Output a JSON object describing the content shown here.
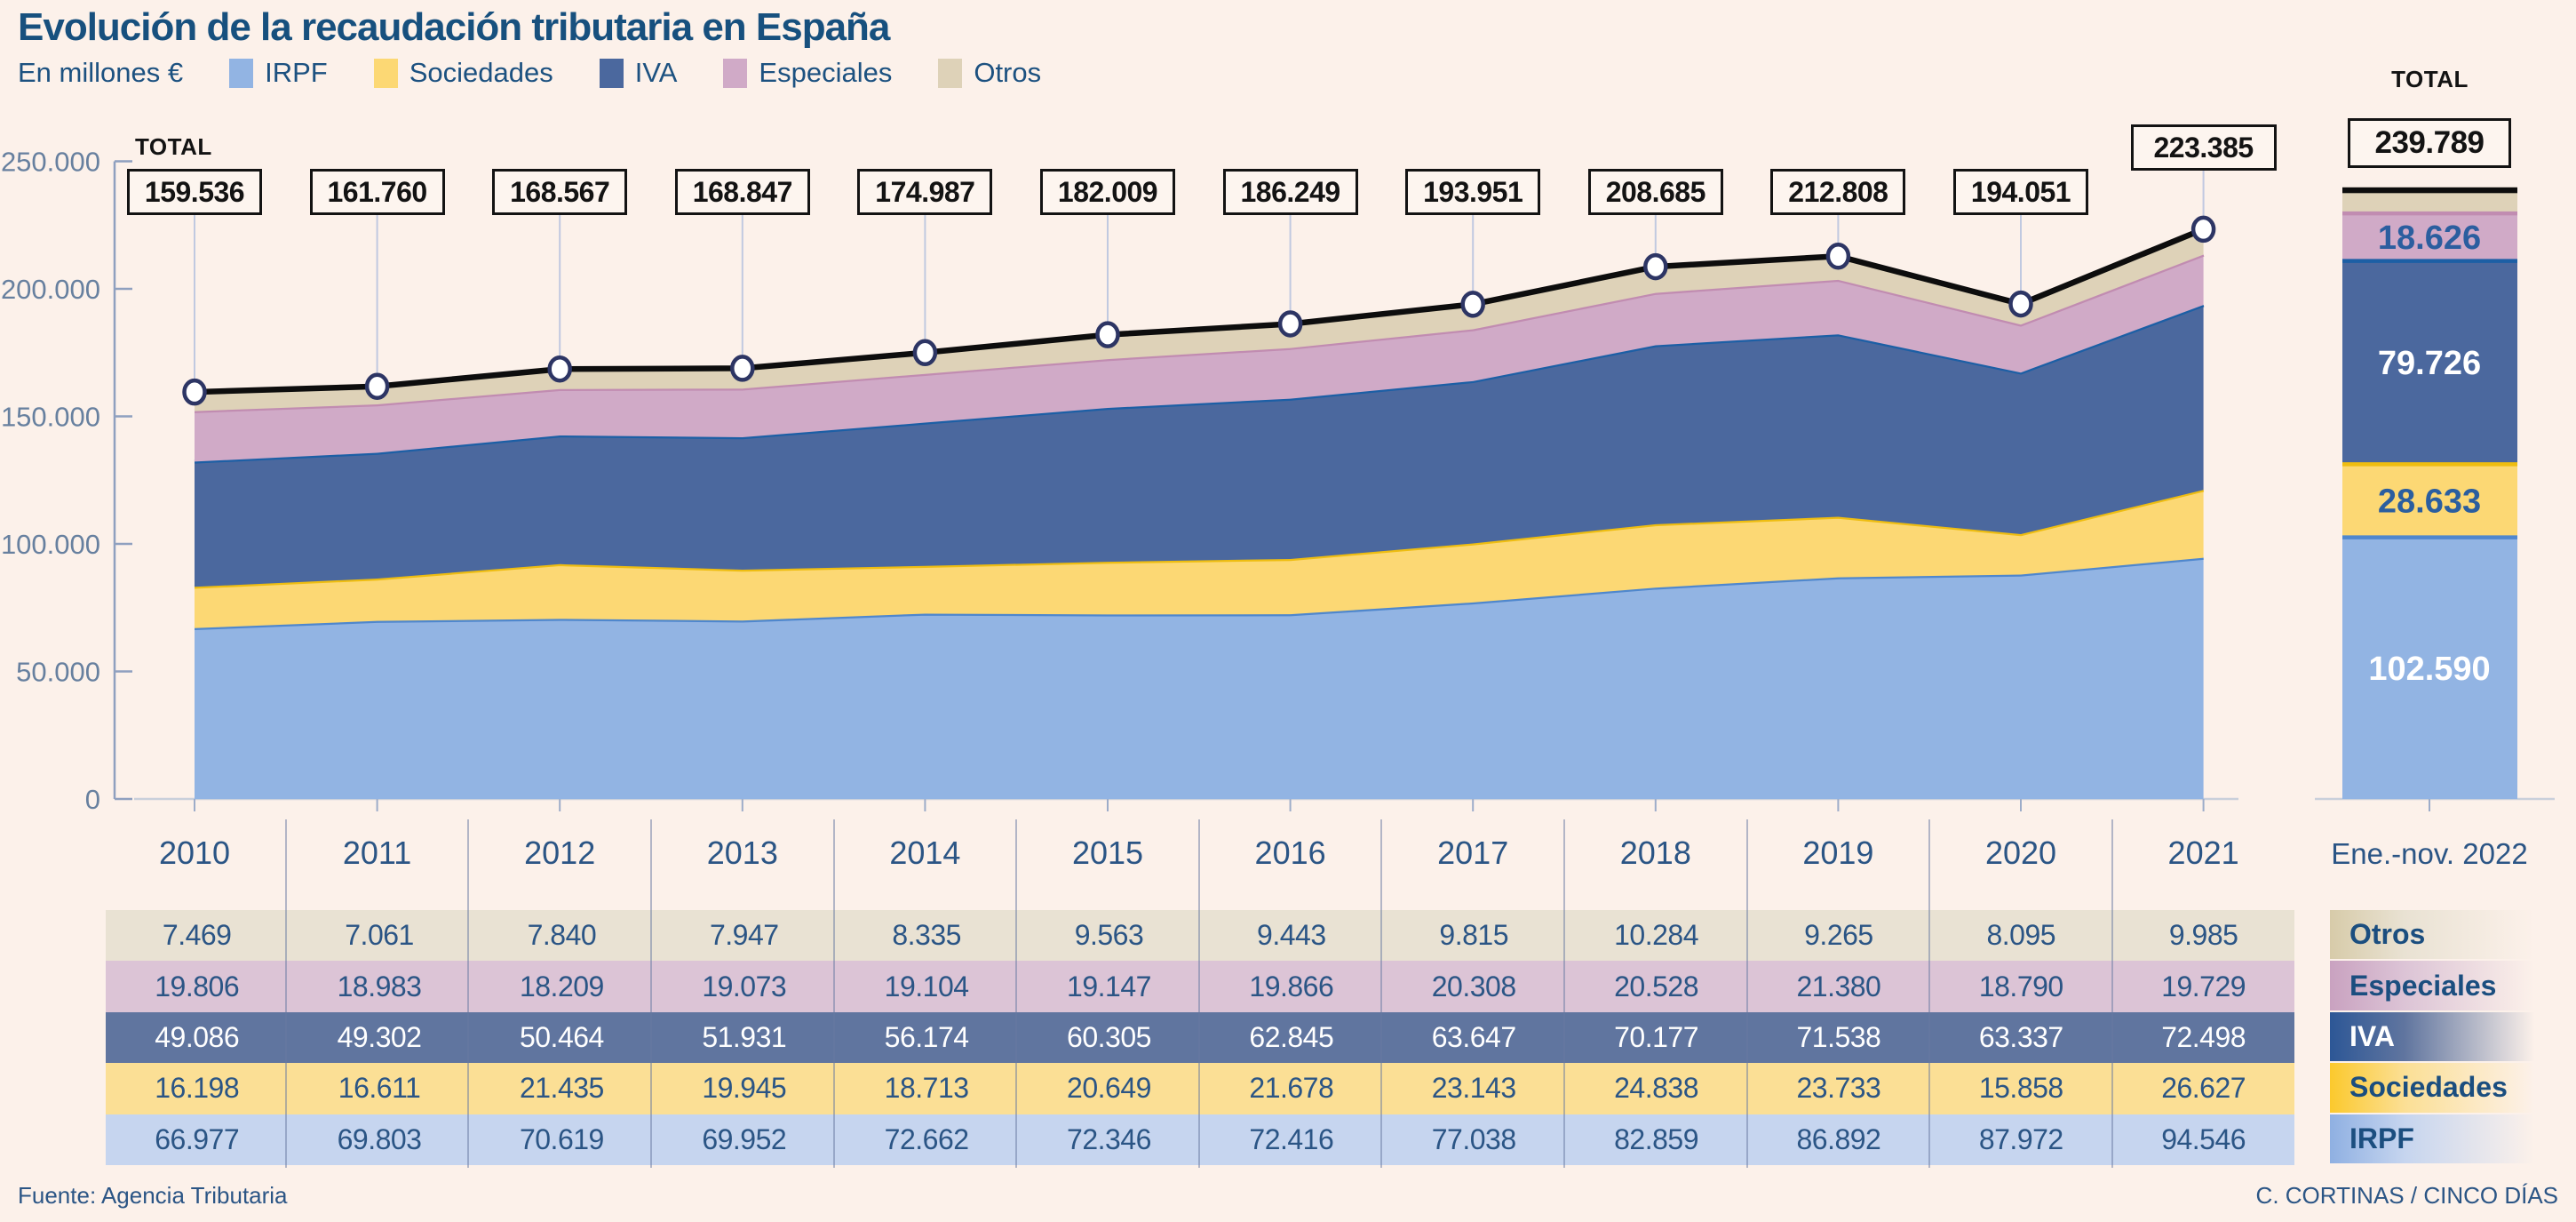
{
  "title": "Evolución de la recaudación tributaria en España",
  "unit_label": "En millones €",
  "total_label": "TOTAL",
  "source": "Fuente: Agencia Tributaria",
  "credit": "C. CORTINAS / CINCO DÍAS",
  "colors": {
    "background": "#fcf1ea",
    "title_text": "#17507e",
    "navy_text": "#2b5585",
    "axis_label": "#67809f",
    "axis_line": "#8fa0bf",
    "baseline": "#c9cfdb",
    "tick": "#9dacc9",
    "connector": "#c0c9e0",
    "total_line": "#0d0d0d",
    "marker_ring": "#2d3564",
    "box_border": "#131313",
    "box_bg": "#fdf5ef"
  },
  "chart_data": {
    "type": "area",
    "stacked": true,
    "title": "Evolución de la recaudación tributaria en España",
    "ylabel": "En millones €",
    "x": [
      "2010",
      "2011",
      "2012",
      "2013",
      "2014",
      "2015",
      "2016",
      "2017",
      "2018",
      "2019",
      "2020",
      "2021"
    ],
    "axis": {
      "ymin": 0,
      "ymax": 250000,
      "tick_labels": [
        "0",
        "50.000",
        "100.000",
        "150.000",
        "200.000",
        "250.000"
      ],
      "grid": false,
      "legend_position": "top"
    },
    "series": [
      {
        "name": "IRPF",
        "fill": "#92b4e3",
        "stroke": "#4f87cd",
        "table_bg": "#c6d5ef",
        "label_grad": "#8fb0e2",
        "values": [
          66977,
          69803,
          70619,
          69952,
          72662,
          72346,
          72416,
          77038,
          82859,
          86892,
          87972,
          94546
        ]
      },
      {
        "name": "Sociedades",
        "fill": "#fcd874",
        "stroke": "#eebd11",
        "table_bg": "#fbdf95",
        "label_grad": "#fbc92d",
        "values": [
          16198,
          16611,
          21435,
          19945,
          18713,
          20649,
          21678,
          23143,
          24838,
          23733,
          15858,
          26627
        ]
      },
      {
        "name": "IVA",
        "fill": "#4b689e",
        "stroke": "#1c5fa5",
        "table_bg": "#60759f",
        "label_grad": "#2d5796",
        "white_text": true,
        "values": [
          49086,
          49302,
          50464,
          51931,
          56174,
          60305,
          62845,
          63647,
          70177,
          71538,
          63337,
          72498
        ]
      },
      {
        "name": "Especiales",
        "fill": "#d0aac7",
        "stroke": "#c18cb1",
        "table_bg": "#dcc4d6",
        "label_grad": "#c9a2c0",
        "values": [
          19806,
          18983,
          18209,
          19073,
          19104,
          19147,
          19866,
          20308,
          20528,
          21380,
          18790,
          19729
        ]
      },
      {
        "name": "Otros",
        "fill": "#ded2b8",
        "stroke": null,
        "table_bg": "#e9e2d3",
        "label_grad": "#d7cba9",
        "values": [
          7469,
          7061,
          7840,
          7947,
          8335,
          9563,
          9443,
          9815,
          10284,
          9265,
          8095,
          9985
        ]
      }
    ],
    "totals_display": [
      "159.536",
      "161.760",
      "168.567",
      "168.847",
      "174.987",
      "182.009",
      "186.249",
      "193.951",
      "208.685",
      "212.808",
      "194.051",
      "223.385"
    ],
    "bar_2022": {
      "x_label": "Ene.-nov. 2022",
      "total_display": "239.789",
      "segments": [
        {
          "name": "IRPF",
          "value": 102590,
          "label": "102.590",
          "label_color": "#ffffff"
        },
        {
          "name": "Sociedades",
          "value": 28633,
          "label": "28.633",
          "label_color": "#2b5e9f"
        },
        {
          "name": "IVA",
          "value": 79726,
          "label": "79.726",
          "label_color": "#ffffff"
        },
        {
          "name": "Especiales",
          "value": 18626,
          "label": "18.626",
          "label_color": "#2b5e9f"
        },
        {
          "name": "Otros",
          "value": 10214,
          "label": null
        }
      ]
    }
  }
}
